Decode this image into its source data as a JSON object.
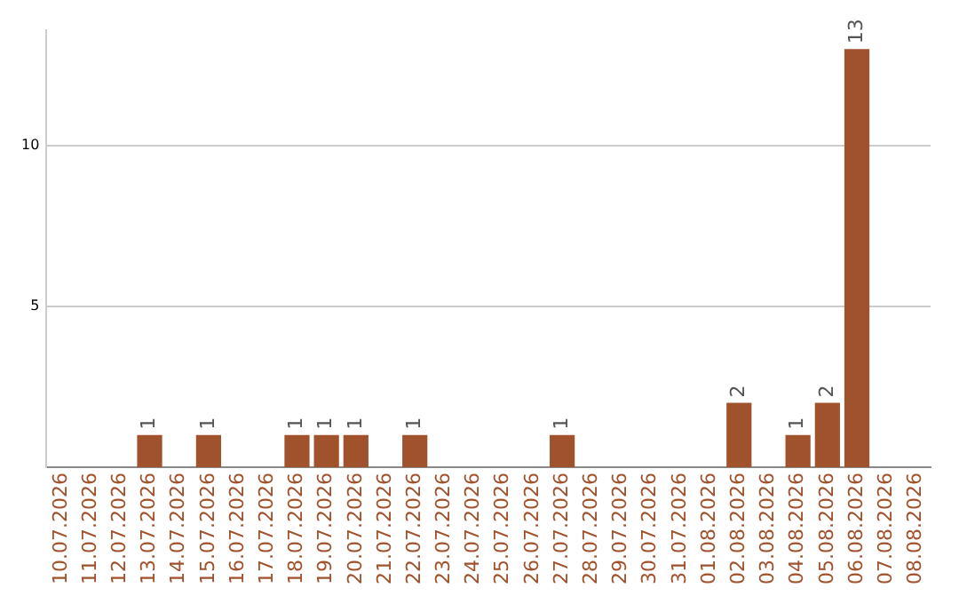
{
  "chart_data": {
    "type": "bar",
    "categories": [
      "10.07.2026",
      "11.07.2026",
      "12.07.2026",
      "13.07.2026",
      "14.07.2026",
      "15.07.2026",
      "16.07.2026",
      "17.07.2026",
      "18.07.2026",
      "19.07.2026",
      "20.07.2026",
      "21.07.2026",
      "22.07.2026",
      "23.07.2026",
      "24.07.2026",
      "25.07.2026",
      "26.07.2026",
      "27.07.2026",
      "28.07.2026",
      "29.07.2026",
      "30.07.2026",
      "31.07.2026",
      "01.08.2026",
      "02.08.2026",
      "03.08.2026",
      "04.08.2026",
      "05.08.2026",
      "06.08.2026",
      "07.08.2026",
      "08.08.2026"
    ],
    "values": [
      null,
      null,
      null,
      1,
      null,
      1,
      null,
      null,
      1,
      1,
      1,
      null,
      1,
      null,
      null,
      null,
      null,
      1,
      null,
      null,
      null,
      null,
      null,
      2,
      null,
      1,
      2,
      13,
      null,
      null
    ],
    "color": "#a0522d",
    "ylim": [
      0,
      13.6
    ],
    "yticks": [
      5,
      10
    ],
    "grid": "y",
    "data_labels": true
  }
}
